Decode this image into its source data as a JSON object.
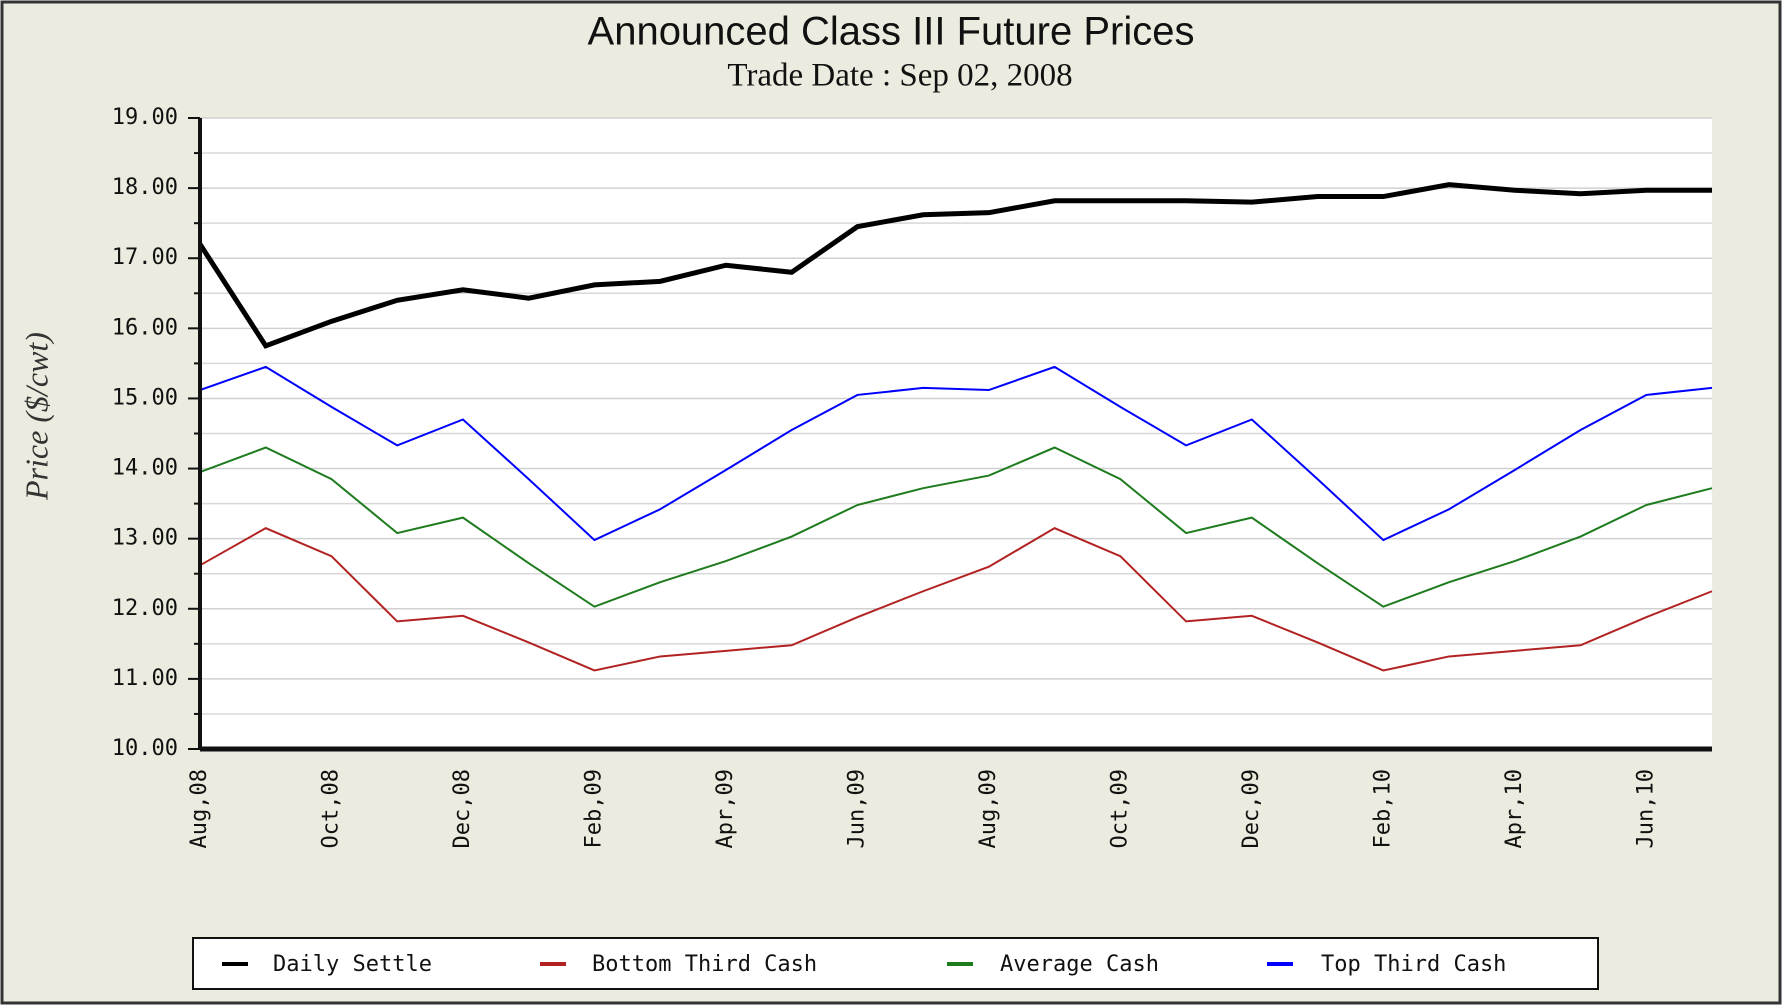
{
  "chart_data": {
    "type": "line",
    "title": "Announced Class III  Future Prices",
    "subtitle": "Trade Date : Sep 02, 2008",
    "y_label": "Price ($/cwt)",
    "categories": [
      "Aug,08",
      null,
      "Oct,08",
      null,
      "Dec,08",
      null,
      "Feb,09",
      null,
      "Apr,09",
      null,
      "Jun,09",
      null,
      "Aug,09",
      null,
      "Oct,09",
      null,
      "Dec,09",
      null,
      "Feb,10",
      null,
      "Apr,10",
      null,
      "Jun,10",
      null
    ],
    "series": [
      {
        "name": "Daily Settle",
        "color": "#000000",
        "values": [
          17.2,
          15.75,
          16.1,
          16.4,
          16.55,
          16.43,
          16.62,
          16.67,
          16.9,
          16.8,
          17.45,
          17.62,
          17.65,
          17.82,
          17.82,
          17.82,
          17.8,
          17.88,
          17.88,
          18.05,
          17.97,
          17.92,
          17.97,
          17.97
        ]
      },
      {
        "name": "Bottom Third Cash",
        "color": "#b22222",
        "values": [
          12.62,
          13.15,
          12.75,
          11.82,
          11.9,
          11.52,
          11.12,
          11.32,
          11.4,
          11.48,
          11.88,
          12.25,
          12.6,
          13.15,
          12.75,
          11.82,
          11.9,
          11.52,
          11.12,
          11.32,
          11.4,
          11.48,
          11.88,
          12.25
        ]
      },
      {
        "name": "Average Cash",
        "color": "#1e7b1e",
        "values": [
          13.95,
          14.3,
          13.85,
          13.08,
          13.3,
          12.65,
          12.03,
          12.38,
          12.68,
          13.03,
          13.48,
          13.72,
          13.9,
          14.3,
          13.85,
          13.08,
          13.3,
          12.65,
          12.03,
          12.38,
          12.68,
          13.03,
          13.48,
          13.72
        ]
      },
      {
        "name": "Top Third Cash",
        "color": "#0000ff",
        "values": [
          15.12,
          15.45,
          14.88,
          14.33,
          14.7,
          13.85,
          12.98,
          13.42,
          13.98,
          14.55,
          15.05,
          15.15,
          15.12,
          15.45,
          14.88,
          14.33,
          14.7,
          13.85,
          12.98,
          13.42,
          13.98,
          14.55,
          15.05,
          15.15
        ]
      }
    ],
    "ylim": [
      10,
      19
    ],
    "yticks": [
      {
        "value": 10,
        "label": "10.00"
      },
      {
        "value": 11,
        "label": "11.00"
      },
      {
        "value": 12,
        "label": "12.00"
      },
      {
        "value": 13,
        "label": "13.00"
      },
      {
        "value": 14,
        "label": "14.00"
      },
      {
        "value": 15,
        "label": "15.00"
      },
      {
        "value": 16,
        "label": "16.00"
      },
      {
        "value": 17,
        "label": "17.00"
      },
      {
        "value": 18,
        "label": "18.00"
      },
      {
        "value": 19,
        "label": "19.00"
      }
    ],
    "minor_yticks": [
      10.5,
      11.5,
      12.5,
      13.5,
      14.5,
      15.5,
      16.5,
      17.5,
      18.5
    ],
    "grid": true,
    "legend": "bottom"
  }
}
